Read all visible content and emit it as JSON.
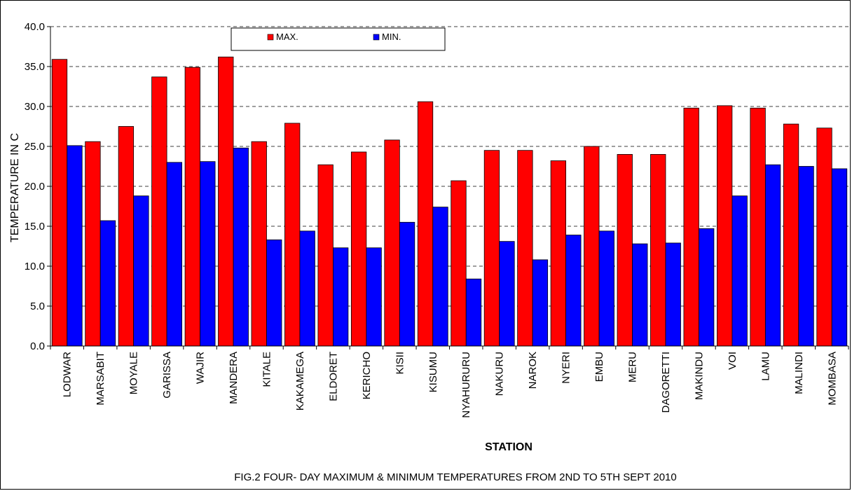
{
  "chart_data": {
    "type": "bar",
    "title": "FIG.2 FOUR- DAY  MAXIMUM & MINIMUM TEMPERATURES FROM  2ND TO 5TH SEPT 2010",
    "xlabel": "STATION",
    "ylabel": "TEMPERATURE IN C",
    "ylim": [
      0,
      40
    ],
    "yticks": [
      "0.0",
      "5.0",
      "10.0",
      "15.0",
      "20.0",
      "25.0",
      "30.0",
      "35.0",
      "40.0"
    ],
    "grid": "horizontal dashed",
    "legend_position": "top-center",
    "categories": [
      "LODWAR",
      "MARSABIT",
      "MOYALE",
      "GARISSA",
      "WAJIR",
      "MANDERA",
      "KITALE",
      "KAKAMEGA",
      "ELDORET",
      "KERICHO",
      "KISII",
      "KISUMU",
      "NYAHURURU",
      "NAKURU",
      "NAROK",
      "NYERI",
      "EMBU",
      "MERU",
      "DAGORETTI",
      "MAKINDU",
      "VOI",
      "LAMU",
      "MALINDI",
      "MOMBASA"
    ],
    "series": [
      {
        "name": "MAX.",
        "color": "#ff0000",
        "values": [
          35.9,
          25.6,
          27.5,
          33.7,
          34.9,
          36.2,
          25.6,
          27.9,
          22.7,
          24.3,
          25.8,
          30.6,
          20.7,
          24.5,
          24.5,
          23.2,
          25.0,
          24.0,
          24.0,
          29.8,
          30.1,
          29.8,
          27.8,
          27.3
        ]
      },
      {
        "name": "MIN.",
        "color": "#0000ff",
        "values": [
          25.1,
          15.7,
          18.8,
          23.0,
          23.1,
          24.8,
          13.3,
          14.4,
          12.3,
          12.3,
          15.5,
          17.4,
          8.4,
          13.1,
          10.8,
          13.9,
          14.4,
          12.8,
          12.9,
          14.7,
          18.8,
          22.7,
          22.5,
          22.2
        ]
      }
    ]
  }
}
